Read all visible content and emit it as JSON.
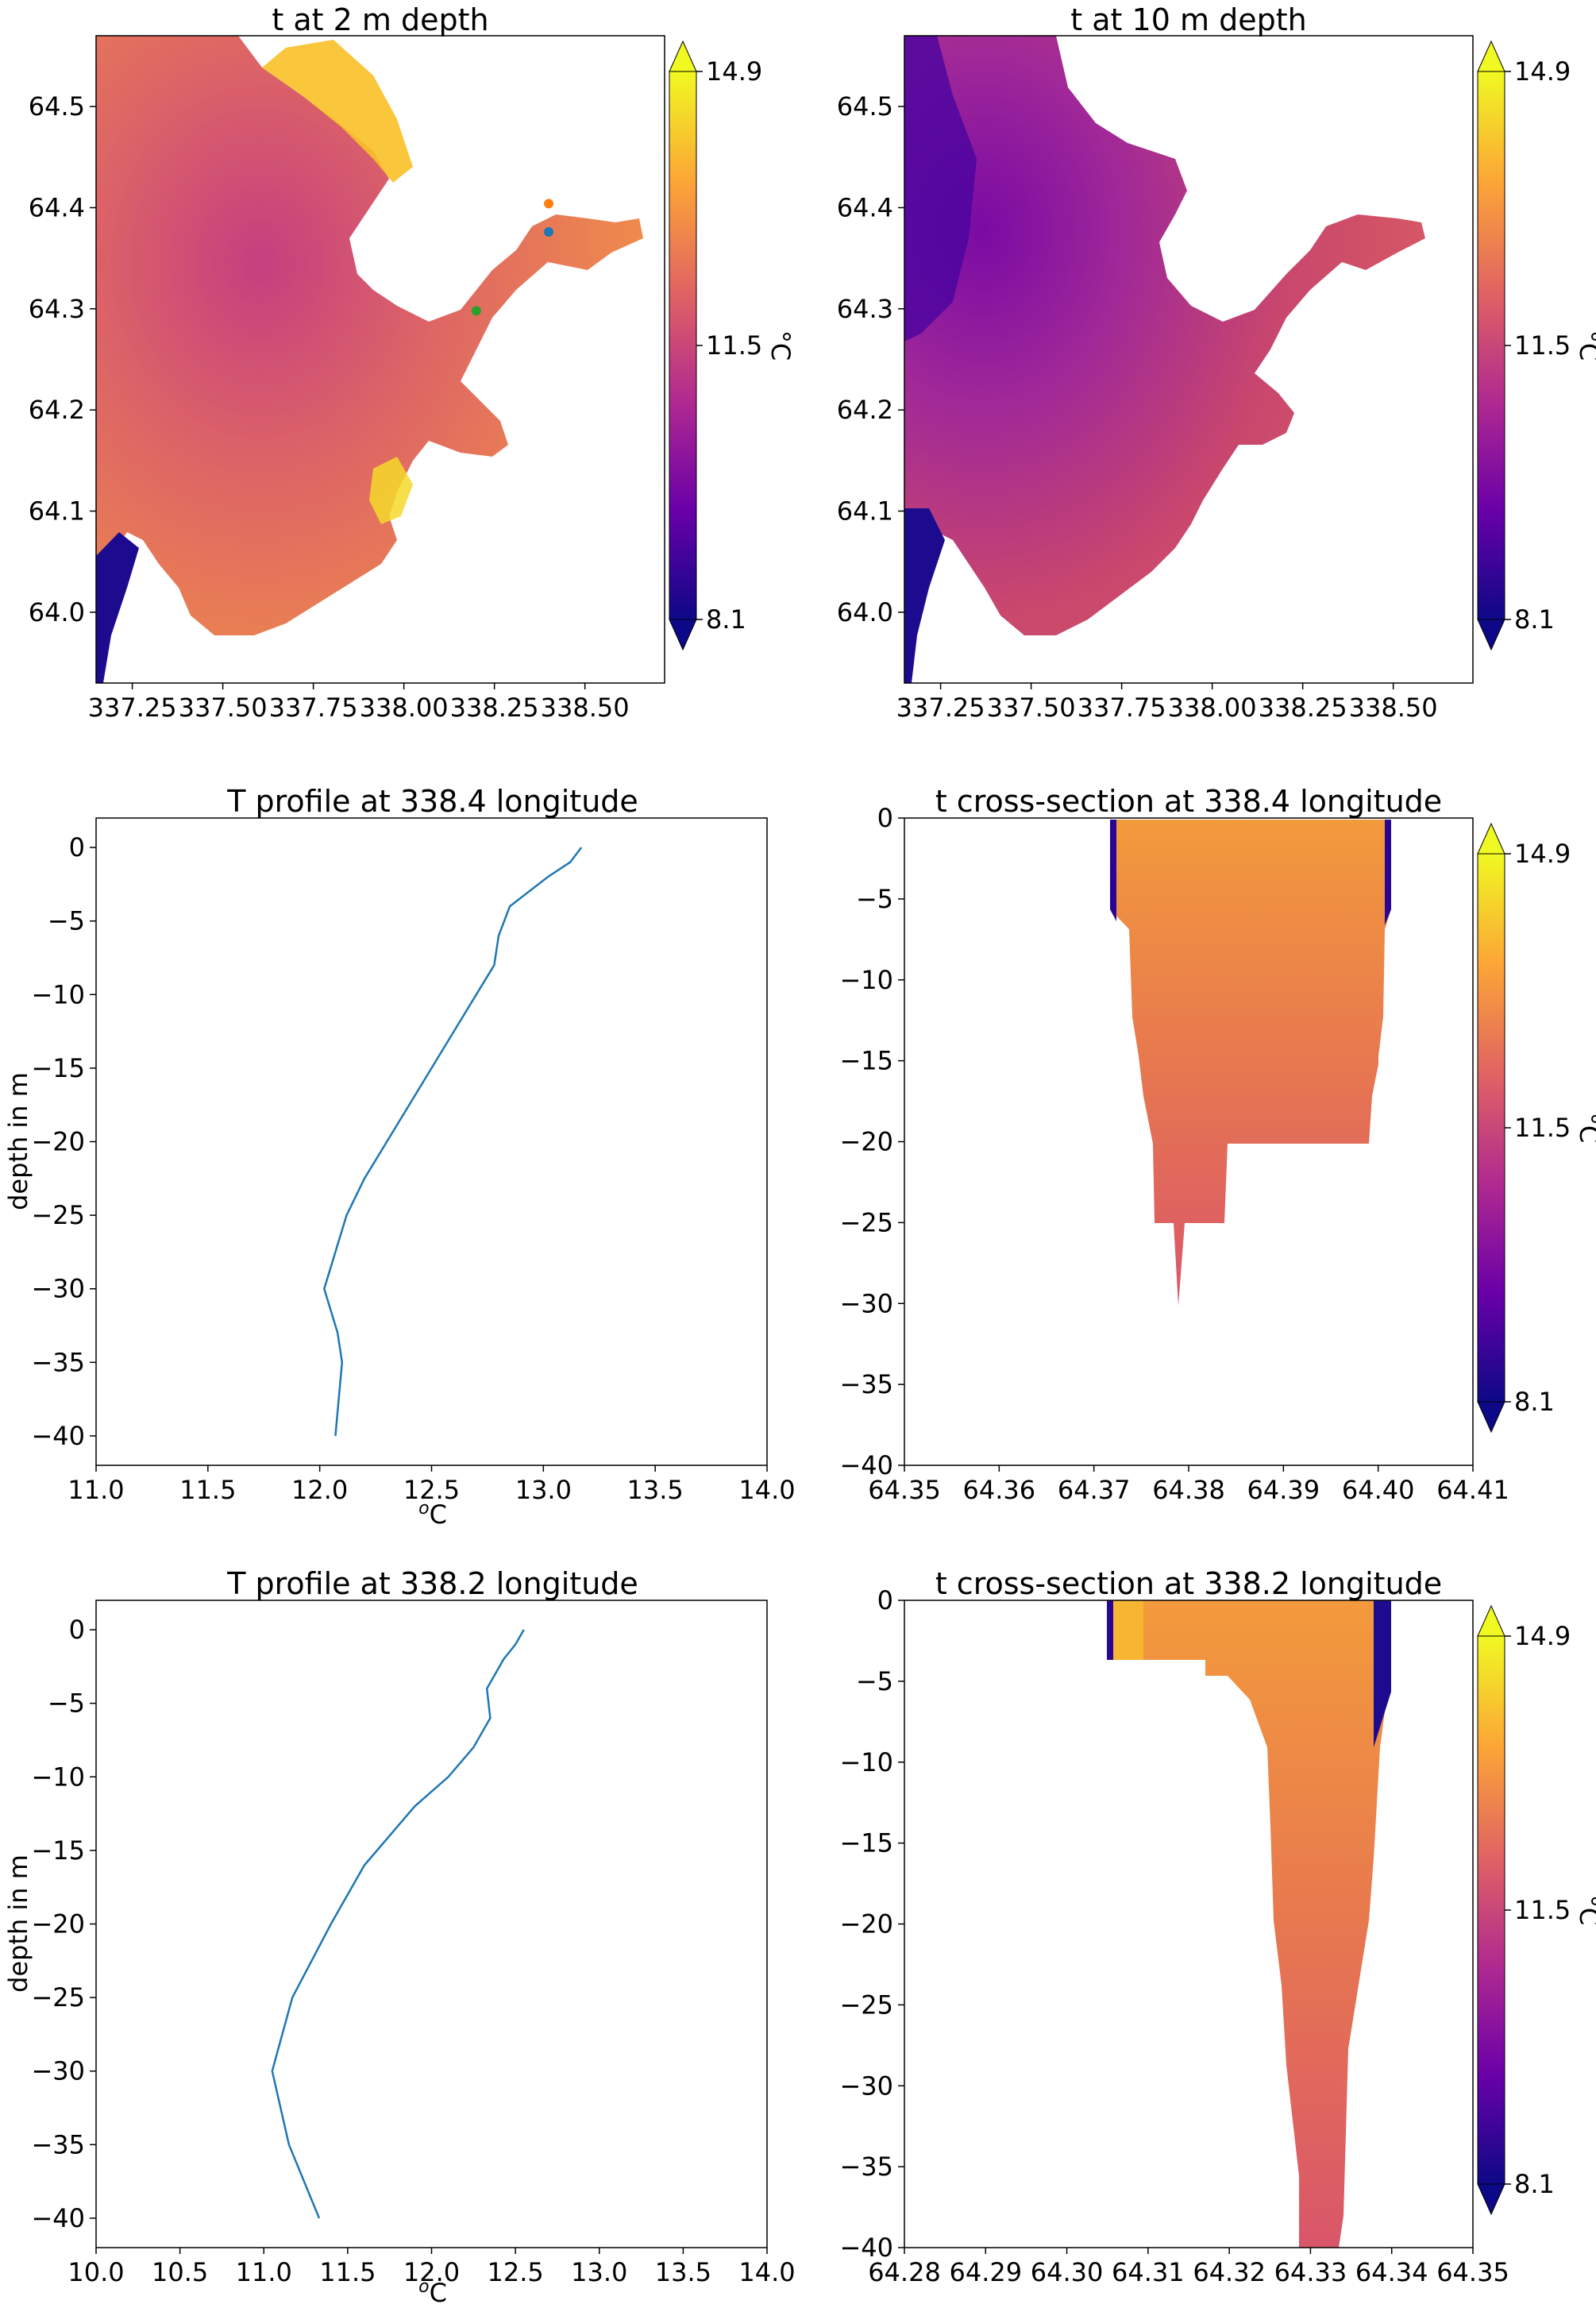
{
  "colorbar": {
    "min_label": "8.1",
    "mid_label": "11.5",
    "max_label": "14.9",
    "unit": "°C",
    "colors": [
      "#0d0887",
      "#6a00a8",
      "#b12a90",
      "#e16462",
      "#fca636",
      "#f0f921"
    ]
  },
  "chart_data": [
    {
      "id": "map2",
      "type": "heatmap",
      "title": "t at 2 m depth",
      "xticks": [
        "337.25",
        "337.50",
        "337.75",
        "338.00",
        "338.25",
        "338.50"
      ],
      "yticks": [
        "64.0",
        "64.1",
        "64.2",
        "64.3",
        "64.4",
        "64.5"
      ],
      "xlim": [
        337.15,
        338.72
      ],
      "ylim": [
        63.93,
        64.57
      ],
      "markers": [
        {
          "x": 338.4,
          "y": 64.404,
          "color": "#ff7f0e"
        },
        {
          "x": 338.4,
          "y": 64.376,
          "color": "#1f77b4"
        },
        {
          "x": 338.2,
          "y": 64.298,
          "color": "#2ca02c"
        }
      ]
    },
    {
      "id": "map10",
      "type": "heatmap",
      "title": "t at 10 m depth",
      "xticks": [
        "337.25",
        "337.50",
        "337.75",
        "338.00",
        "338.25",
        "338.50"
      ],
      "yticks": [
        "64.0",
        "64.1",
        "64.2",
        "64.3",
        "64.4",
        "64.5"
      ],
      "xlim": [
        337.15,
        338.72
      ],
      "ylim": [
        63.93,
        64.57
      ]
    },
    {
      "id": "prof1",
      "type": "line",
      "title": "T profile at 338.4 longitude",
      "xlabel": "oC",
      "ylabel": "depth in m",
      "xlim": [
        11.0,
        14.0
      ],
      "ylim": [
        -42,
        2
      ],
      "xticks": [
        "11.0",
        "11.5",
        "12.0",
        "12.5",
        "13.0",
        "13.5",
        "14.0"
      ],
      "yticks": [
        "0",
        "−5",
        "−10",
        "−15",
        "−20",
        "−25",
        "−30",
        "−35",
        "−40"
      ],
      "series": [
        {
          "x": [
            13.17,
            13.12,
            13.02,
            12.85,
            12.8,
            12.78,
            12.7,
            12.5,
            12.3,
            12.2,
            12.12,
            12.02,
            12.08,
            12.1,
            12.07
          ],
          "y": [
            0,
            -1,
            -2,
            -4,
            -6,
            -8,
            -10,
            -15,
            -20,
            -22.5,
            -25,
            -30,
            -33,
            -35,
            -40
          ]
        }
      ]
    },
    {
      "id": "xs1",
      "type": "heatmap",
      "title": "t cross-section at 338.4 longitude",
      "xlim": [
        64.35,
        64.41
      ],
      "ylim": [
        -40,
        0
      ],
      "xticks": [
        "64.35",
        "64.36",
        "64.37",
        "64.38",
        "64.39",
        "64.40",
        "64.41"
      ],
      "yticks": [
        "0",
        "−5",
        "−10",
        "−15",
        "−20",
        "−25",
        "−30",
        "−35",
        "−40"
      ]
    },
    {
      "id": "prof2",
      "type": "line",
      "title": "T profile at 338.2 longitude",
      "xlabel": "oC",
      "ylabel": "depth in m",
      "xlim": [
        10.0,
        14.0
      ],
      "ylim": [
        -42,
        2
      ],
      "xticks": [
        "10.0",
        "10.5",
        "11.0",
        "11.5",
        "12.0",
        "12.5",
        "13.0",
        "13.5",
        "14.0"
      ],
      "yticks": [
        "0",
        "−5",
        "−10",
        "−15",
        "−20",
        "−25",
        "−30",
        "−35",
        "−40"
      ],
      "series": [
        {
          "x": [
            12.55,
            12.5,
            12.43,
            12.33,
            12.35,
            12.25,
            12.1,
            11.9,
            11.6,
            11.4,
            11.17,
            11.05,
            11.15,
            11.33
          ],
          "y": [
            0,
            -1,
            -2,
            -4,
            -6,
            -8,
            -10,
            -12,
            -16,
            -20,
            -25,
            -30,
            -35,
            -40
          ]
        }
      ]
    },
    {
      "id": "xs2",
      "type": "heatmap",
      "title": "t cross-section at 338.2 longitude",
      "xlim": [
        64.28,
        64.35
      ],
      "ylim": [
        -40,
        0
      ],
      "xticks": [
        "64.28",
        "64.29",
        "64.30",
        "64.31",
        "64.32",
        "64.33",
        "64.34",
        "64.35"
      ],
      "yticks": [
        "0",
        "−5",
        "−10",
        "−15",
        "−20",
        "−25",
        "−30",
        "−35",
        "−40"
      ]
    }
  ]
}
